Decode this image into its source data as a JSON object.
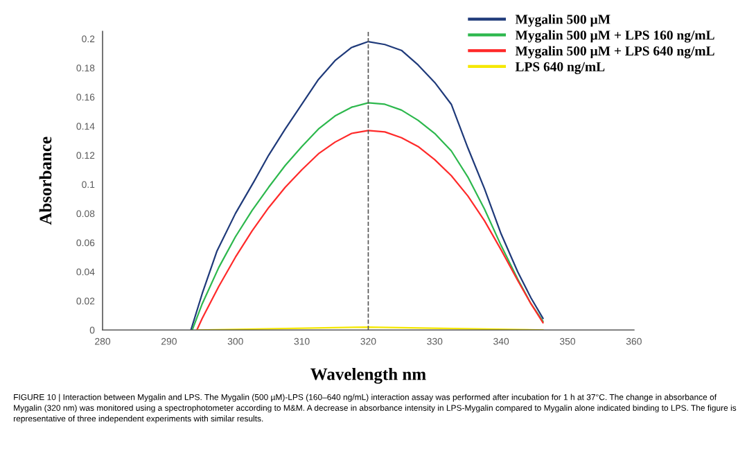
{
  "chart_data": {
    "type": "line",
    "xlabel": "Wavelength nm",
    "ylabel": "Absorbance",
    "xlim": [
      280,
      360
    ],
    "xticks": [
      280,
      290,
      300,
      310,
      320,
      330,
      340,
      350,
      360
    ],
    "ylim": [
      0,
      0.205
    ],
    "yticks": [
      0,
      0.02,
      0.04,
      0.06,
      0.08,
      0.1,
      0.12,
      0.14,
      0.16,
      0.18,
      0.2
    ],
    "grid": false,
    "legend": "top right",
    "marker": "none",
    "line_style": "solid",
    "series": [
      {
        "name": "Mygalin 500 µM",
        "color": "#1f3a7a",
        "x": [
          293.3,
          295,
          297.2,
          300,
          302.8,
          305,
          307.5,
          310,
          312.5,
          315,
          317.5,
          320,
          322.5,
          325,
          327.5,
          330,
          332.5,
          335,
          337.5,
          340,
          342.5,
          344.5,
          346.3
        ],
        "values": [
          0,
          0.025,
          0.054,
          0.08,
          0.102,
          0.12,
          0.138,
          0.155,
          0.172,
          0.185,
          0.194,
          0.198,
          0.196,
          0.192,
          0.182,
          0.17,
          0.155,
          0.125,
          0.097,
          0.066,
          0.04,
          0.022,
          0.008
        ]
      },
      {
        "name": "Mygalin 500 µM + LPS 160 ng/mL",
        "color": "#2db84d",
        "x": [
          293.5,
          295,
          297.5,
          300,
          302.5,
          305,
          307.5,
          310,
          312.5,
          315,
          317.5,
          320,
          322.5,
          325,
          327.5,
          330,
          332.5,
          335,
          337.5,
          340,
          342.5,
          344.5,
          346.3
        ],
        "values": [
          0,
          0.018,
          0.043,
          0.064,
          0.082,
          0.098,
          0.113,
          0.126,
          0.138,
          0.147,
          0.153,
          0.156,
          0.155,
          0.151,
          0.144,
          0.135,
          0.123,
          0.105,
          0.083,
          0.058,
          0.035,
          0.018,
          0.006
        ]
      },
      {
        "name": "Mygalin 500 µM + LPS 640 ng/mL",
        "color": "#ff2a2a",
        "x": [
          294.2,
          295,
          297.5,
          300,
          302.5,
          305,
          307.5,
          310,
          312.5,
          315,
          317.5,
          320,
          322.5,
          325,
          327.5,
          330,
          332.5,
          335,
          337.5,
          340,
          342.5,
          344.5,
          346.3
        ],
        "values": [
          0,
          0.008,
          0.03,
          0.05,
          0.068,
          0.084,
          0.098,
          0.11,
          0.121,
          0.129,
          0.135,
          0.137,
          0.136,
          0.132,
          0.126,
          0.117,
          0.106,
          0.092,
          0.075,
          0.055,
          0.034,
          0.018,
          0.005
        ]
      },
      {
        "name": "LPS 640 ng/mL",
        "color": "#f5e800",
        "x": [
          294.2,
          320,
          346.3
        ],
        "values": [
          0,
          0.002,
          0
        ]
      }
    ],
    "ref_lines": [
      {
        "axis": "x",
        "value": 320,
        "color": "#555555",
        "line_style": "dashed"
      }
    ],
    "annotations": [
      "FIGURE 10 | Interaction between Mygalin and LPS. The Mygalin (500 µM)-LPS (160–640 ng/mL) interaction assay was performed after incubation for 1 h at 37°C. The change in absorbance of Mygalin (320 nm) was monitored using a spectrophotometer according to M&M. A decrease in absorbance intensity in LPS-Mygalin compared to Mygalin alone indicated binding to LPS. The figure is representative of three independent experiments with similar results."
    ]
  }
}
